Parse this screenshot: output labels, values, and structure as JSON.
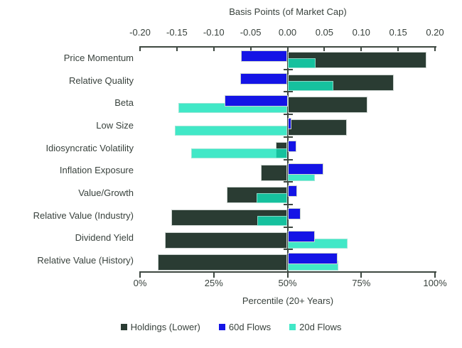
{
  "chart_data": {
    "type": "bar",
    "orientation": "horizontal",
    "top_axis": {
      "title": "Basis Points (of Market Cap)",
      "min": -0.2,
      "max": 0.2,
      "tick_labels": [
        "-0.20",
        "-0.15",
        "-0.10",
        "-0.05",
        "0.00",
        "0.05",
        "0.10",
        "0.15",
        "0.20"
      ]
    },
    "bottom_axis": {
      "title": "Percentile (20+ Years)",
      "min": 0,
      "max": 100,
      "tick_labels": [
        "0%",
        "25%",
        "50%",
        "75%",
        "100%"
      ]
    },
    "categories": [
      "Price Momentum",
      "Relative Quality",
      "Beta",
      "Low Size",
      "Idiosyncratic Volatility",
      "Inflation Exposure",
      "Value/Growth",
      "Relative Value (Industry)",
      "Dividend Yield",
      "Relative Value (History)"
    ],
    "series": [
      {
        "name": "Holdings (Lower)",
        "axis": "bottom",
        "unit": "percentile",
        "baseline": 50,
        "color": "#2a3c33",
        "values": [
          97,
          86,
          77,
          70,
          46,
          41,
          29.5,
          10.5,
          8.5,
          6
        ]
      },
      {
        "name": "60d Flows",
        "axis": "top",
        "unit": "basis points",
        "baseline": 0,
        "color": "#1414e6",
        "values": [
          -0.063,
          -0.064,
          -0.085,
          0.005,
          0.012,
          0.049,
          0.013,
          0.018,
          0.037,
          0.068
        ]
      },
      {
        "name": "20d Flows",
        "axis": "top",
        "unit": "basis points",
        "baseline": 0,
        "color": "#41e8c7",
        "color_rgba": "rgba(17,226,185,0.8)",
        "values": [
          0.038,
          0.062,
          -0.148,
          -0.153,
          -0.131,
          0.037,
          -0.042,
          -0.041,
          0.081,
          0.069
        ]
      }
    ],
    "legend_position": "bottom",
    "grid": false,
    "zero_line_at_50_pct": true
  }
}
